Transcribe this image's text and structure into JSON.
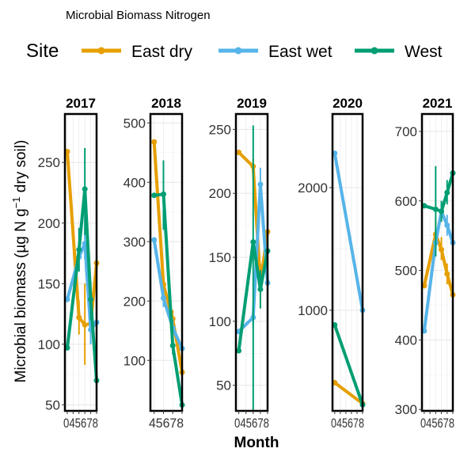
{
  "chart_data": {
    "type": "line",
    "title": "Microbial Biomass Nitrogen",
    "xlabel": "Month",
    "ylabel": "Microbial biomass (µg N g⁻¹ dry soil)",
    "legend": {
      "title": "Site",
      "position": "top",
      "entries": [
        {
          "name": "East dry",
          "color": "#E69F00"
        },
        {
          "name": "East wet",
          "color": "#56B4E9"
        },
        {
          "name": "West",
          "color": "#009E73"
        }
      ]
    },
    "grid": true,
    "facets": [
      {
        "label": "2017",
        "xlim": [
          3.6,
          9.0
        ],
        "ylim": [
          45,
          290
        ],
        "yticks": [
          50,
          100,
          150,
          200,
          250
        ],
        "xticks": [
          4,
          5,
          6,
          7,
          8,
          9
        ],
        "xtick_text": "045678",
        "series": [
          {
            "name": "East dry",
            "x": [
              4,
              6,
              7,
              8,
              9
            ],
            "y": [
              259,
              122,
              116,
              117,
              167
            ],
            "lo": [
              null,
              108,
              83,
              105,
              125
            ],
            "hi": [
              null,
              136,
              150,
              129,
              213
            ]
          },
          {
            "name": "East wet",
            "x": [
              4,
              6,
              7,
              8,
              9
            ],
            "y": [
              137,
              172,
              183,
              112,
              118
            ],
            "lo": [
              null,
              160,
              170,
              100,
              105
            ],
            "hi": [
              null,
              185,
              196,
              124,
              130
            ]
          },
          {
            "name": "West",
            "x": [
              4,
              6,
              7,
              8,
              9
            ],
            "y": [
              97,
              178,
              228,
              137,
              70
            ],
            "lo": [
              null,
              160,
              190,
              120,
              60
            ],
            "hi": [
              null,
              196,
              262,
              152,
              80
            ]
          }
        ]
      },
      {
        "label": "2018",
        "xlim": [
          4.6,
          8.0
        ],
        "ylim": [
          15,
          515
        ],
        "yticks": [
          100,
          200,
          300,
          400,
          500
        ],
        "xticks": [
          5,
          6,
          7,
          8
        ],
        "xtick_text": "45678",
        "series": [
          {
            "name": "East dry",
            "x": [
              5,
              6,
              7,
              8
            ],
            "y": [
              468,
              228,
              170,
              80
            ],
            "lo": [
              null,
              null,
              155,
              70
            ],
            "hi": [
              null,
              null,
              185,
              90
            ]
          },
          {
            "name": "East wet",
            "x": [
              5,
              6,
              7,
              8
            ],
            "y": [
              303,
              205,
              155,
              120
            ],
            "lo": [
              null,
              190,
              140,
              110
            ],
            "hi": [
              null,
              220,
              170,
              130
            ]
          },
          {
            "name": "West",
            "x": [
              5,
              6,
              7,
              8
            ],
            "y": [
              378,
              380,
              125,
              25
            ],
            "lo": [
              null,
              320,
              110,
              15
            ],
            "hi": [
              null,
              437,
              140,
              35
            ]
          }
        ]
      },
      {
        "label": "2019",
        "xlim": [
          3.6,
          8.0
        ],
        "ylim": [
          30,
          262
        ],
        "yticks": [
          50,
          100,
          150,
          200,
          250
        ],
        "xticks": [
          4,
          5,
          6,
          7,
          8
        ],
        "xtick_text": "045678",
        "series": [
          {
            "name": "East dry",
            "x": [
              4,
              6,
              7,
              8
            ],
            "y": [
              232,
              221,
              130,
              170
            ],
            "lo": [
              null,
              215,
              115,
              160
            ],
            "hi": [
              null,
              227,
              145,
              180
            ]
          },
          {
            "name": "East wet",
            "x": [
              4,
              6,
              7,
              8
            ],
            "y": [
              92,
              103,
              207,
              130
            ],
            "lo": [
              null,
              95,
              195,
              85
            ],
            "hi": [
              null,
              112,
              220,
              207
            ]
          },
          {
            "name": "West",
            "x": [
              4,
              6,
              7,
              8
            ],
            "y": [
              77,
              162,
              125,
              155
            ],
            "lo": [
              null,
              30,
              110,
              140
            ],
            "hi": [
              null,
              253,
              140,
              170
            ]
          }
        ]
      },
      {
        "label": "2020",
        "xlim": [
          3.6,
          9.0
        ],
        "ylim": [
          180,
          2600
        ],
        "yticks": [
          1000,
          2000
        ],
        "xticks": [
          4,
          5,
          6,
          7,
          8,
          9
        ],
        "xtick_text": "045678",
        "series": [
          {
            "name": "East dry",
            "x": [
              4,
              9
            ],
            "y": [
              410,
              240
            ]
          },
          {
            "name": "East wet",
            "x": [
              4,
              9
            ],
            "y": [
              2280,
              1000
            ]
          },
          {
            "name": "West",
            "x": [
              4,
              9
            ],
            "y": [
              880,
              230
            ]
          }
        ]
      },
      {
        "label": "2021",
        "xlim": [
          3.6,
          9.0
        ],
        "ylim": [
          298,
          725
        ],
        "yticks": [
          300,
          400,
          500,
          600,
          700
        ],
        "xticks": [
          4,
          5,
          6,
          7,
          8,
          9
        ],
        "xtick_text": "045678",
        "series": [
          {
            "name": "East dry",
            "x": [
              4,
              6,
              7,
              8,
              9
            ],
            "y": [
              478,
              552,
              530,
              495,
              465
            ],
            "lo": [
              null,
              530,
              515,
              480,
              410
            ],
            "hi": [
              null,
              575,
              548,
              510,
              480
            ]
          },
          {
            "name": "East wet",
            "x": [
              4,
              6,
              7,
              8,
              9
            ],
            "y": [
              413,
              540,
              585,
              565,
              540
            ],
            "lo": [
              null,
              520,
              570,
              550,
              525
            ],
            "hi": [
              null,
              560,
              600,
              580,
              555
            ]
          },
          {
            "name": "West",
            "x": [
              4,
              6,
              7,
              8,
              9
            ],
            "y": [
              593,
              588,
              585,
              612,
              640
            ],
            "lo": [
              null,
              520,
              570,
              595,
              625
            ],
            "hi": [
              null,
              650,
              600,
              630,
              655
            ]
          }
        ]
      }
    ]
  }
}
